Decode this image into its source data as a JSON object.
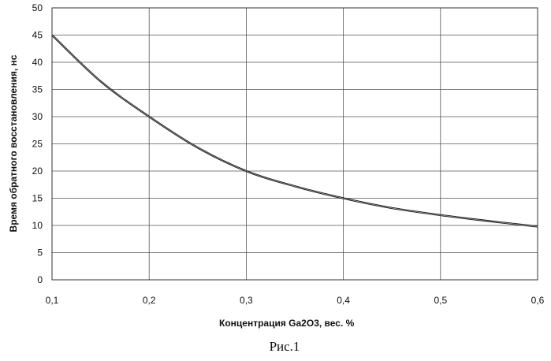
{
  "chart_data": {
    "type": "line",
    "title": "",
    "xlabel": "Концентрация Ga2O3, вес. %",
    "ylabel": "Время обратного восстановления, нс",
    "xlim": [
      0.1,
      0.6
    ],
    "ylim": [
      0,
      50
    ],
    "x_ticks": [
      "0,1",
      "0,2",
      "0,3",
      "0,4",
      "0,5",
      "0,6"
    ],
    "y_ticks": [
      "0",
      "5",
      "10",
      "15",
      "20",
      "25",
      "30",
      "35",
      "40",
      "45",
      "50"
    ],
    "grid": true,
    "series": [
      {
        "x": [
          0.1,
          0.15,
          0.2,
          0.25,
          0.3,
          0.35,
          0.4,
          0.45,
          0.5,
          0.55,
          0.6
        ],
        "values": [
          45,
          36.5,
          30,
          24.3,
          20,
          17.2,
          15,
          13.2,
          11.9,
          10.8,
          9.8
        ]
      }
    ]
  },
  "caption": "Рис.1"
}
